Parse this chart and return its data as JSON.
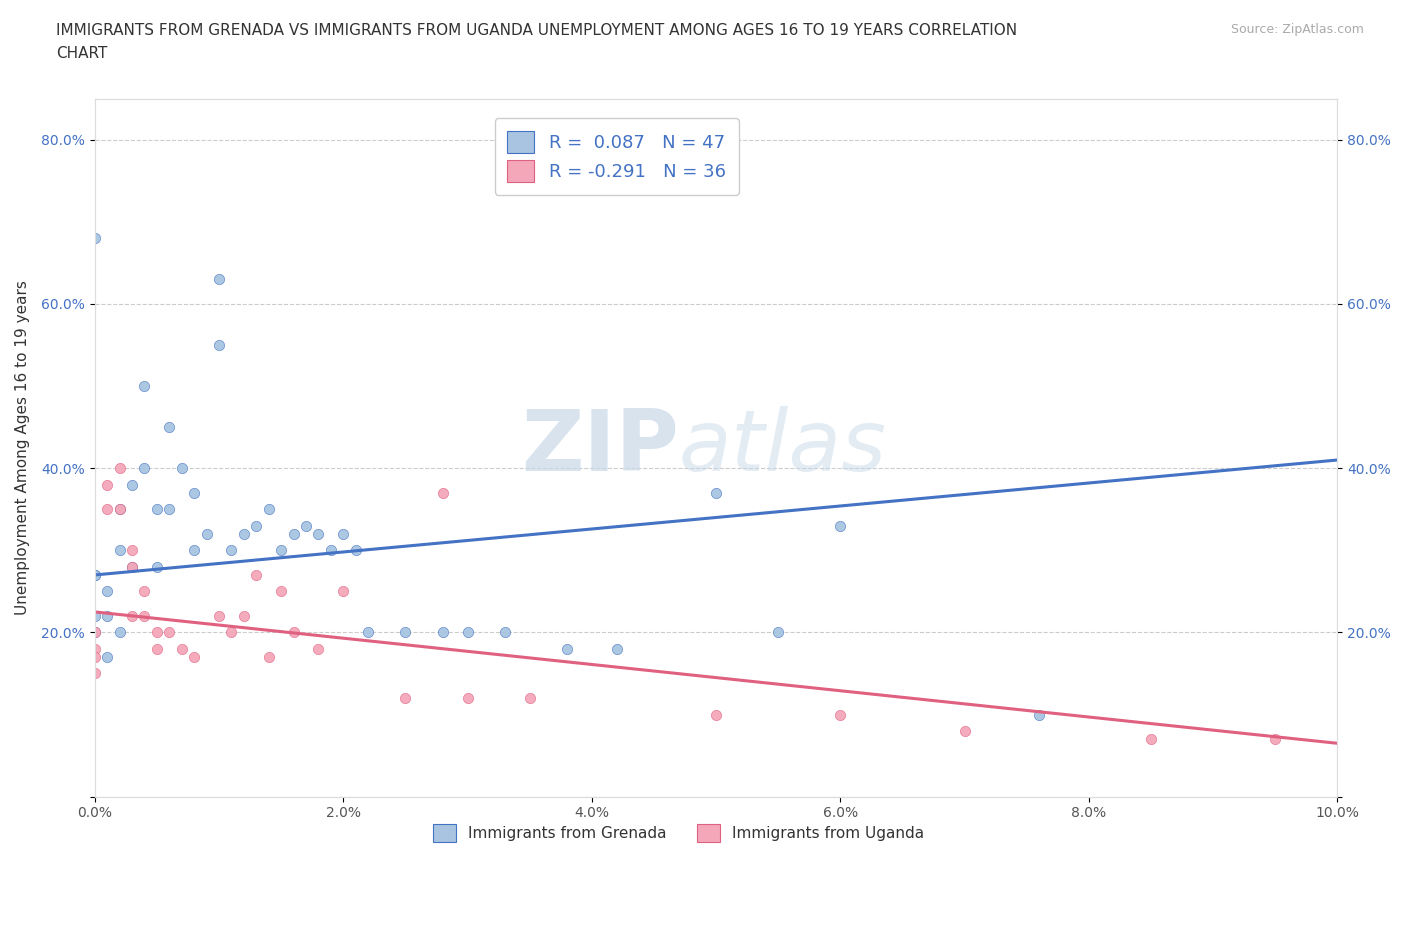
{
  "title_line1": "IMMIGRANTS FROM GRENADA VS IMMIGRANTS FROM UGANDA UNEMPLOYMENT AMONG AGES 16 TO 19 YEARS CORRELATION",
  "title_line2": "CHART",
  "source_text": "Source: ZipAtlas.com",
  "ylabel": "Unemployment Among Ages 16 to 19 years",
  "xlim": [
    0.0,
    0.1
  ],
  "ylim": [
    0.0,
    0.85
  ],
  "x_ticks": [
    0.0,
    0.02,
    0.04,
    0.06,
    0.08,
    0.1
  ],
  "x_tick_labels": [
    "0.0%",
    "2.0%",
    "4.0%",
    "6.0%",
    "8.0%",
    "10.0%"
  ],
  "y_ticks": [
    0.0,
    0.2,
    0.4,
    0.6,
    0.8
  ],
  "y_tick_labels": [
    "",
    "20.0%",
    "40.0%",
    "60.0%",
    "80.0%"
  ],
  "grenada_color": "#a8c4e0",
  "uganda_color": "#f4a7b9",
  "grenada_line_color": "#4472c4",
  "uganda_line_color": "#e06080",
  "R_grenada": 0.087,
  "N_grenada": 47,
  "R_uganda": -0.291,
  "N_uganda": 36,
  "legend_label_grenada": "Immigrants from Grenada",
  "legend_label_uganda": "Immigrants from Uganda",
  "watermark_zip": "ZIP",
  "watermark_atlas": "atlas",
  "background_color": "#ffffff",
  "grenada_line_y0": 0.27,
  "grenada_line_y1": 0.41,
  "uganda_line_y0": 0.225,
  "uganda_line_y1": 0.065,
  "grenada_x": [
    0.0,
    0.0,
    0.0,
    0.0,
    0.0,
    0.001,
    0.001,
    0.001,
    0.002,
    0.002,
    0.002,
    0.003,
    0.003,
    0.004,
    0.004,
    0.005,
    0.005,
    0.006,
    0.006,
    0.007,
    0.008,
    0.008,
    0.009,
    0.01,
    0.01,
    0.011,
    0.012,
    0.013,
    0.014,
    0.015,
    0.016,
    0.017,
    0.018,
    0.019,
    0.02,
    0.021,
    0.022,
    0.025,
    0.028,
    0.03,
    0.033,
    0.038,
    0.042,
    0.05,
    0.055,
    0.06,
    0.076
  ],
  "grenada_y": [
    0.68,
    0.27,
    0.27,
    0.22,
    0.2,
    0.25,
    0.22,
    0.17,
    0.35,
    0.3,
    0.2,
    0.38,
    0.28,
    0.5,
    0.4,
    0.35,
    0.28,
    0.45,
    0.35,
    0.4,
    0.37,
    0.3,
    0.32,
    0.63,
    0.55,
    0.3,
    0.32,
    0.33,
    0.35,
    0.3,
    0.32,
    0.33,
    0.32,
    0.3,
    0.32,
    0.3,
    0.2,
    0.2,
    0.2,
    0.2,
    0.2,
    0.18,
    0.18,
    0.37,
    0.2,
    0.33,
    0.1
  ],
  "uganda_x": [
    0.0,
    0.0,
    0.0,
    0.0,
    0.001,
    0.001,
    0.002,
    0.002,
    0.003,
    0.003,
    0.003,
    0.004,
    0.004,
    0.005,
    0.005,
    0.006,
    0.007,
    0.008,
    0.01,
    0.011,
    0.012,
    0.013,
    0.014,
    0.015,
    0.016,
    0.018,
    0.02,
    0.025,
    0.028,
    0.03,
    0.035,
    0.05,
    0.06,
    0.07,
    0.085,
    0.095
  ],
  "uganda_y": [
    0.2,
    0.18,
    0.17,
    0.15,
    0.38,
    0.35,
    0.4,
    0.35,
    0.3,
    0.28,
    0.22,
    0.25,
    0.22,
    0.2,
    0.18,
    0.2,
    0.18,
    0.17,
    0.22,
    0.2,
    0.22,
    0.27,
    0.17,
    0.25,
    0.2,
    0.18,
    0.25,
    0.12,
    0.37,
    0.12,
    0.12,
    0.1,
    0.1,
    0.08,
    0.07,
    0.07
  ]
}
